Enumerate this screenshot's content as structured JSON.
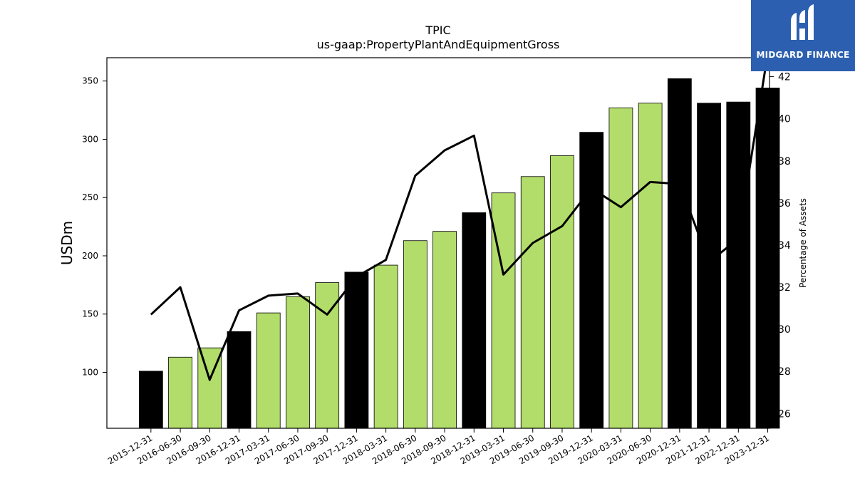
{
  "chart_data": {
    "type": "bar",
    "title": "TPIC",
    "subtitle": "us-gaap:PropertyPlantAndEquipmentGross",
    "ylabel": "USDm",
    "y2label": "Percentage of Assets",
    "ylim": [
      52,
      370
    ],
    "y2lim": [
      25.3,
      42.9
    ],
    "yticks": [
      100,
      150,
      200,
      250,
      300,
      350
    ],
    "y2ticks": [
      26,
      28,
      30,
      32,
      34,
      36,
      38,
      40,
      42
    ],
    "categories": [
      "2015-12-31",
      "2016-06-30",
      "2016-09-30",
      "2016-12-31",
      "2017-03-31",
      "2017-06-30",
      "2017-09-30",
      "2017-12-31",
      "2018-03-31",
      "2018-06-30",
      "2018-09-30",
      "2018-12-31",
      "2019-03-31",
      "2019-06-30",
      "2019-09-30",
      "2019-12-31",
      "2020-03-31",
      "2020-06-30",
      "2020-12-31",
      "2021-12-31",
      "2022-12-31",
      "2023-12-31"
    ],
    "series": [
      {
        "type": "bar",
        "axis": "left",
        "values": [
          101,
          113,
          121,
          135,
          151,
          165,
          177,
          186,
          192,
          213,
          221,
          237,
          254,
          268,
          286,
          306,
          327,
          331,
          352,
          331,
          332,
          344
        ],
        "colors": [
          "#000000",
          "#b2dd6a",
          "#b2dd6a",
          "#000000",
          "#b2dd6a",
          "#b2dd6a",
          "#b2dd6a",
          "#000000",
          "#b2dd6a",
          "#b2dd6a",
          "#b2dd6a",
          "#000000",
          "#b2dd6a",
          "#b2dd6a",
          "#b2dd6a",
          "#000000",
          "#b2dd6a",
          "#b2dd6a",
          "#000000",
          "#000000",
          "#000000",
          "#000000"
        ]
      },
      {
        "type": "line",
        "axis": "right",
        "values": [
          30.7,
          32.0,
          27.6,
          30.9,
          31.6,
          31.7,
          30.7,
          32.5,
          33.3,
          37.3,
          38.5,
          39.2,
          32.6,
          34.1,
          34.9,
          36.7,
          35.8,
          37.0,
          36.9,
          33.2,
          34.3,
          43.1
        ],
        "color": "#000000"
      }
    ],
    "grid": false,
    "legend": "none"
  },
  "logo": {
    "text": "MIDGARD FINANCE"
  }
}
